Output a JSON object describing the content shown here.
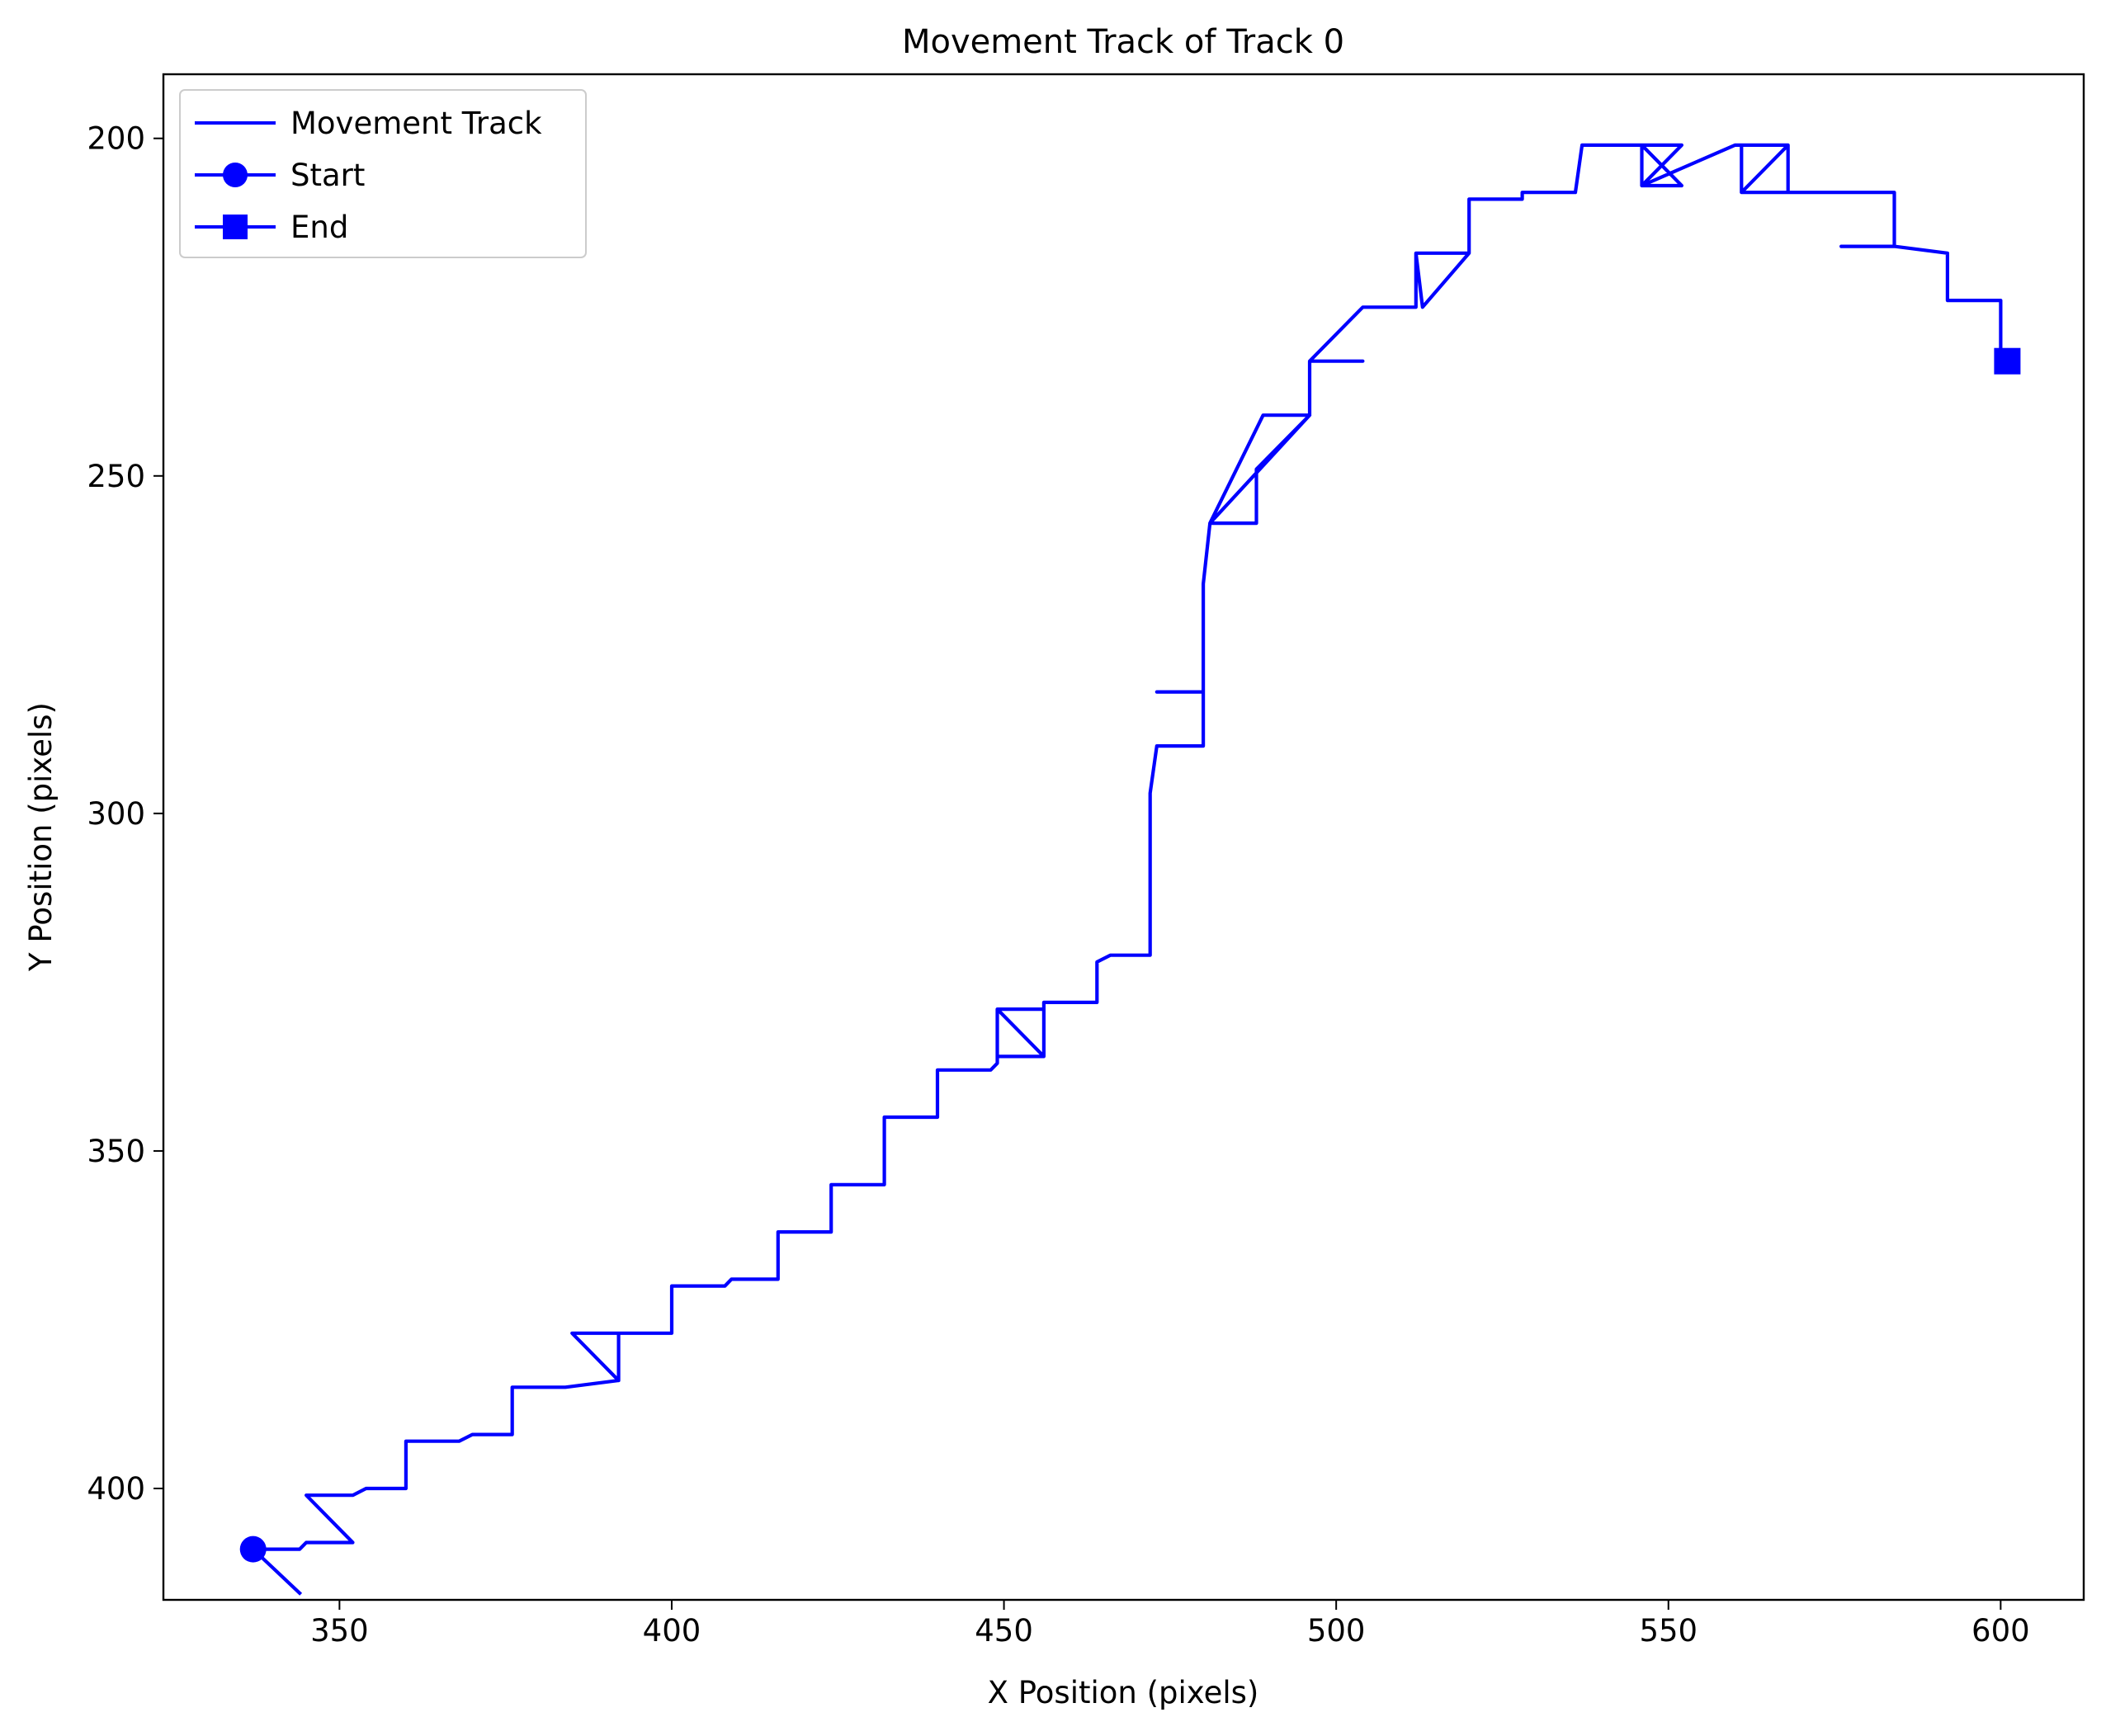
{
  "chart_data": {
    "type": "line",
    "title": "Movement Track of Track 0",
    "xlabel": "X Position (pixels)",
    "ylabel": "Y Position (pixels)",
    "xlim": [
      323.5,
      612.5
    ],
    "ylim": [
      416.5,
      190.5
    ],
    "y_inverted": true,
    "xticks": [
      350,
      400,
      450,
      500,
      550,
      600
    ],
    "yticks": [
      200,
      250,
      300,
      350,
      400
    ],
    "grid": false,
    "legend_position": "top-left",
    "legend": [
      {
        "label": "Movement Track",
        "marker": "none"
      },
      {
        "label": "Start",
        "marker": "circle"
      },
      {
        "label": "End",
        "marker": "square"
      }
    ],
    "series": [
      {
        "name": "Movement Track",
        "color": "#0000ff",
        "points": [
          [
            344,
            415.5
          ],
          [
            337,
            409
          ],
          [
            344,
            409
          ],
          [
            345,
            408
          ],
          [
            352,
            408
          ],
          [
            345,
            401
          ],
          [
            352,
            401
          ],
          [
            354,
            400
          ],
          [
            360,
            400
          ],
          [
            360,
            393
          ],
          [
            368,
            393
          ],
          [
            370,
            392
          ],
          [
            376,
            392
          ],
          [
            376,
            385
          ],
          [
            384,
            385
          ],
          [
            392,
            384
          ],
          [
            392,
            377
          ],
          [
            385,
            377
          ],
          [
            392,
            384
          ],
          [
            392,
            377
          ],
          [
            400,
            377
          ],
          [
            400,
            370
          ],
          [
            408,
            370
          ],
          [
            409,
            369
          ],
          [
            416,
            369
          ],
          [
            416,
            362
          ],
          [
            424,
            362
          ],
          [
            424,
            355
          ],
          [
            432,
            355
          ],
          [
            432,
            345
          ],
          [
            440,
            345
          ],
          [
            440,
            338
          ],
          [
            448,
            338
          ],
          [
            449,
            337
          ],
          [
            449,
            329
          ],
          [
            456,
            336
          ],
          [
            449,
            336
          ],
          [
            449,
            329
          ],
          [
            456,
            329
          ],
          [
            456,
            336
          ],
          [
            456,
            328
          ],
          [
            464,
            328
          ],
          [
            464,
            322
          ],
          [
            466,
            321
          ],
          [
            472,
            321
          ],
          [
            472,
            313
          ],
          [
            472,
            305
          ],
          [
            472,
            297
          ],
          [
            473,
            290
          ],
          [
            480,
            290
          ],
          [
            480,
            282
          ],
          [
            473,
            282
          ],
          [
            480,
            282
          ],
          [
            480,
            274
          ],
          [
            480,
            266
          ],
          [
            481,
            257
          ],
          [
            488,
            257
          ],
          [
            488,
            249
          ],
          [
            496,
            241
          ],
          [
            481,
            257
          ],
          [
            489,
            241
          ],
          [
            496,
            241
          ],
          [
            496,
            233
          ],
          [
            504,
            233
          ],
          [
            496,
            233
          ],
          [
            504,
            225
          ],
          [
            512,
            225
          ],
          [
            512,
            217
          ],
          [
            513,
            225
          ],
          [
            520,
            217
          ],
          [
            512,
            217
          ],
          [
            520,
            217
          ],
          [
            520,
            209
          ],
          [
            528,
            209
          ],
          [
            528,
            208
          ],
          [
            536,
            208
          ],
          [
            537,
            201
          ],
          [
            546,
            201
          ],
          [
            546,
            207
          ],
          [
            552,
            201
          ],
          [
            546,
            201
          ],
          [
            552,
            207
          ],
          [
            546,
            207
          ],
          [
            560,
            201
          ],
          [
            568,
            201
          ],
          [
            568,
            208
          ],
          [
            561,
            208
          ],
          [
            568,
            201
          ],
          [
            561,
            201
          ],
          [
            561,
            208
          ],
          [
            568,
            208
          ],
          [
            576,
            208
          ],
          [
            584,
            208
          ],
          [
            584,
            216
          ],
          [
            576,
            216
          ],
          [
            584,
            216
          ],
          [
            592,
            217
          ],
          [
            592,
            224
          ],
          [
            600,
            224
          ],
          [
            600,
            232
          ]
        ]
      }
    ],
    "start": {
      "name": "Start",
      "x": 337,
      "y": 409
    },
    "end": {
      "name": "End",
      "x": 601,
      "y": 233
    }
  }
}
